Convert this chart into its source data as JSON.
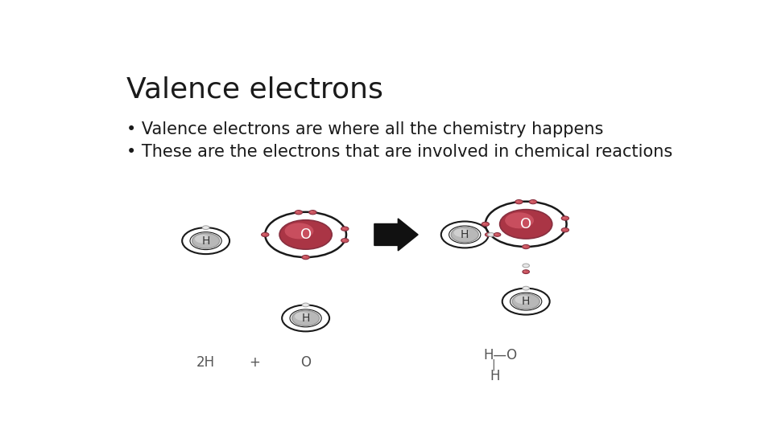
{
  "title": "Valence electrons",
  "bullet1": "Valence electrons are where all the chemistry happens",
  "bullet2": "These are the electrons that are involved in chemical reactions",
  "bg_color": "#ffffff",
  "title_fontsize": 26,
  "bullet_fontsize": 15,
  "atom_H_color_light": "#d8d8d8",
  "atom_H_color_dark": "#b0b0b0",
  "atom_O_color_light": "#cc5560",
  "atom_O_color_dark": "#a03040",
  "electron_filled_color": "#cc5560",
  "electron_empty_color": "#e8e8e8",
  "electron_empty_edge": "#aaaaaa",
  "orbit_color": "#1a1a1a",
  "atom_border": "#888888",
  "arrow_color": "#111111",
  "text_color": "#1a1a1a",
  "label_color": "#555555"
}
